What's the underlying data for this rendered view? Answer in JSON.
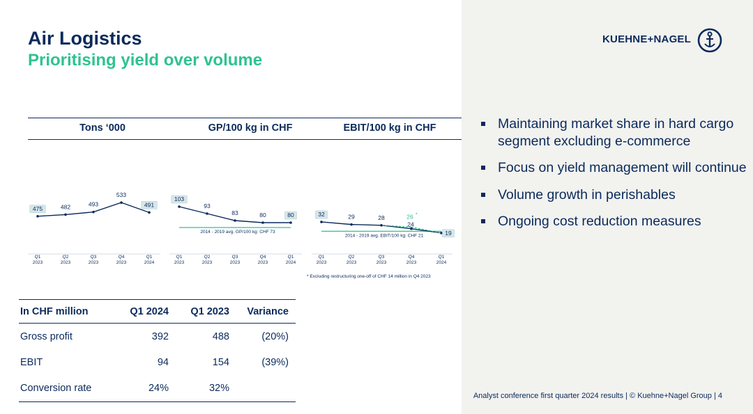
{
  "slide": {
    "title": "Air Logistics",
    "subtitle": "Prioritising yield over volume"
  },
  "logo": {
    "text": "KUEHNE+NAGEL"
  },
  "colors": {
    "navy": "#0b2a5b",
    "green": "#2fc38f",
    "panel": "#f2f2ef",
    "label_box": "#d6e7ea"
  },
  "chart_data": [
    {
      "type": "line",
      "title": "Tons ‘000",
      "categories": [
        "Q1\n2023",
        "Q2\n2023",
        "Q3\n2023",
        "Q4\n2023",
        "Q1\n2024"
      ],
      "series": [
        {
          "values": [
            475,
            482,
            493,
            533,
            491
          ]
        }
      ],
      "ylim": [
        300,
        560
      ]
    },
    {
      "type": "line",
      "title": "GP/100 kg in CHF",
      "categories": [
        "Q1\n2023",
        "Q2\n2023",
        "Q3\n2023",
        "Q4\n2023",
        "Q1\n2024"
      ],
      "series": [
        {
          "values": [
            103,
            93,
            83,
            80,
            80
          ]
        }
      ],
      "reference_line": {
        "value": 73,
        "label": "2014 - 2019 avg. GP/100 kg: CHF 73"
      },
      "ylim": [
        40,
        112
      ]
    },
    {
      "type": "line",
      "title": "EBIT/100 kg in CHF",
      "categories": [
        "Q1\n2023",
        "Q2\n2023",
        "Q3\n2023",
        "Q4\n2023",
        "Q1\n2024"
      ],
      "series": [
        {
          "values": [
            32,
            29,
            28,
            24,
            19
          ]
        }
      ],
      "adjusted_point": {
        "category_index": 3,
        "value": 26,
        "label": "26",
        "marker": "*",
        "dashed_to_index": 4
      },
      "reference_line": {
        "value": 21,
        "label": "2014 - 2019 avg. EBIT/100 kg: CHF 21"
      },
      "footnote": "* Excluding restructuring one-off of CHF 14 million in Q4 2023",
      "ylim": [
        0,
        50
      ]
    }
  ],
  "table": {
    "headers": [
      "In CHF million",
      "Q1 2024",
      "Q1 2023",
      "Variance"
    ],
    "rows": [
      [
        "Gross profit",
        "392",
        "488",
        "(20%)"
      ],
      [
        "EBIT",
        "94",
        "154",
        "(39%)"
      ],
      [
        "Conversion rate",
        "24%",
        "32%",
        ""
      ]
    ]
  },
  "bullets": [
    "Maintaining market share in hard cargo segment excluding e-commerce",
    "Focus on yield management will continue",
    "Volume growth in perishables",
    "Ongoing cost reduction measures"
  ],
  "footer": "Analyst conference first quarter 2024 results | © Kuehne+Nagel Group | 4"
}
